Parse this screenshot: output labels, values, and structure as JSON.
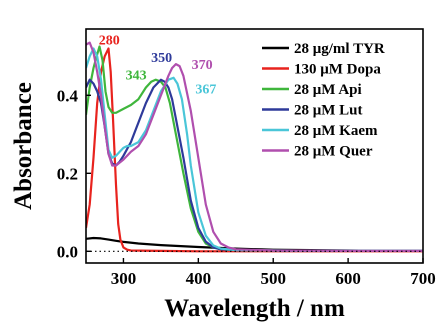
{
  "chart_data": {
    "type": "line",
    "xlabel": "Wavelength / nm",
    "ylabel": "Absorbance",
    "xlim": [
      250,
      700
    ],
    "ylim": [
      -0.03,
      0.57
    ],
    "x_ticks": [
      300,
      400,
      500,
      600,
      700
    ],
    "y_ticks": [
      0.0,
      0.2,
      0.4
    ],
    "y_tick_labels": [
      "0.0",
      "0.2",
      "0.4"
    ],
    "zero_line": "dotted",
    "grid": false,
    "legend_position": "top-right",
    "series": [
      {
        "name": "28 μg/ml TYR",
        "color": "#000000",
        "x": [
          250,
          260,
          270,
          280,
          290,
          300,
          320,
          350,
          400,
          450,
          500,
          550,
          600,
          650,
          700
        ],
        "y": [
          0.032,
          0.034,
          0.033,
          0.03,
          0.027,
          0.024,
          0.02,
          0.016,
          0.011,
          0.007,
          0.004,
          0.003,
          0.002,
          0.001,
          0.001
        ]
      },
      {
        "name": "130 μM Dopa",
        "color": "#e8231e",
        "x": [
          250,
          255,
          260,
          265,
          270,
          275,
          280,
          283,
          286,
          290,
          293,
          296,
          300,
          305,
          310,
          350,
          400,
          450,
          500,
          600,
          700
        ],
        "y": [
          0.06,
          0.12,
          0.24,
          0.38,
          0.46,
          0.5,
          0.52,
          0.46,
          0.34,
          0.17,
          0.07,
          0.03,
          0.01,
          0.004,
          0.002,
          0.001,
          0.0,
          0.0,
          0.0,
          0.0,
          0.0
        ]
      },
      {
        "name": "28 μM Api",
        "color": "#3fb63c",
        "x": [
          250,
          255,
          260,
          265,
          268,
          272,
          276,
          280,
          285,
          290,
          300,
          310,
          320,
          330,
          337,
          343,
          350,
          356,
          362,
          370,
          380,
          390,
          400,
          410,
          420,
          430,
          450,
          500,
          600,
          700
        ],
        "y": [
          0.35,
          0.42,
          0.47,
          0.505,
          0.525,
          0.49,
          0.41,
          0.37,
          0.355,
          0.355,
          0.365,
          0.375,
          0.39,
          0.42,
          0.435,
          0.44,
          0.435,
          0.42,
          0.38,
          0.3,
          0.2,
          0.11,
          0.05,
          0.02,
          0.01,
          0.005,
          0.003,
          0.002,
          0.001,
          0.001
        ]
      },
      {
        "name": "28 μM Lut",
        "color": "#2e3a9a",
        "x": [
          250,
          255,
          260,
          265,
          270,
          275,
          280,
          285,
          290,
          295,
          300,
          310,
          320,
          330,
          340,
          350,
          355,
          360,
          365,
          370,
          380,
          390,
          400,
          410,
          420,
          430,
          450,
          500,
          600,
          700
        ],
        "y": [
          0.42,
          0.44,
          0.43,
          0.41,
          0.38,
          0.32,
          0.25,
          0.225,
          0.22,
          0.23,
          0.245,
          0.28,
          0.33,
          0.38,
          0.42,
          0.44,
          0.435,
          0.42,
          0.39,
          0.34,
          0.24,
          0.13,
          0.06,
          0.025,
          0.01,
          0.005,
          0.003,
          0.002,
          0.001,
          0.001
        ]
      },
      {
        "name": "28 μM Kaem",
        "color": "#4ac6d8",
        "x": [
          250,
          255,
          260,
          265,
          270,
          275,
          280,
          285,
          290,
          295,
          300,
          305,
          310,
          320,
          330,
          340,
          350,
          360,
          367,
          372,
          378,
          385,
          390,
          400,
          410,
          420,
          430,
          450,
          500,
          600,
          700
        ],
        "y": [
          0.47,
          0.5,
          0.52,
          0.5,
          0.44,
          0.35,
          0.26,
          0.24,
          0.245,
          0.255,
          0.265,
          0.27,
          0.27,
          0.28,
          0.31,
          0.36,
          0.41,
          0.44,
          0.445,
          0.43,
          0.39,
          0.3,
          0.22,
          0.1,
          0.04,
          0.015,
          0.007,
          0.003,
          0.002,
          0.001,
          0.001
        ]
      },
      {
        "name": "28 μM Quer",
        "color": "#b04fae",
        "x": [
          250,
          255,
          260,
          265,
          270,
          275,
          280,
          285,
          290,
          300,
          310,
          320,
          330,
          340,
          350,
          360,
          365,
          370,
          375,
          380,
          390,
          400,
          410,
          420,
          430,
          440,
          450,
          500,
          600,
          700
        ],
        "y": [
          0.53,
          0.535,
          0.51,
          0.46,
          0.4,
          0.32,
          0.25,
          0.22,
          0.22,
          0.235,
          0.255,
          0.27,
          0.3,
          0.35,
          0.4,
          0.45,
          0.47,
          0.48,
          0.475,
          0.45,
          0.36,
          0.24,
          0.12,
          0.05,
          0.02,
          0.01,
          0.005,
          0.002,
          0.001,
          0.001
        ]
      }
    ],
    "annotations": [
      {
        "text": "280",
        "color": "#e8231e",
        "x": 281,
        "y": 0.53
      },
      {
        "text": "343",
        "color": "#3fb63c",
        "x": 317,
        "y": 0.44
      },
      {
        "text": "350",
        "color": "#2e3a9a",
        "x": 351,
        "y": 0.485
      },
      {
        "text": "370",
        "color": "#b04fae",
        "x": 405,
        "y": 0.468
      },
      {
        "text": "367",
        "color": "#4ac6d8",
        "x": 410,
        "y": 0.405
      }
    ]
  }
}
